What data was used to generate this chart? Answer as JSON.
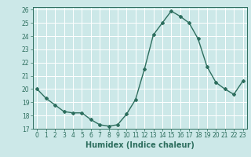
{
  "x": [
    0,
    1,
    2,
    3,
    4,
    5,
    6,
    7,
    8,
    9,
    10,
    11,
    12,
    13,
    14,
    15,
    16,
    17,
    18,
    19,
    20,
    21,
    22,
    23
  ],
  "y": [
    20.0,
    19.3,
    18.8,
    18.3,
    18.2,
    18.2,
    17.7,
    17.3,
    17.2,
    17.3,
    18.1,
    19.2,
    21.5,
    24.1,
    25.0,
    25.9,
    25.5,
    25.0,
    23.8,
    21.7,
    20.5,
    20.0,
    19.6,
    20.6
  ],
  "xlabel": "Humidex (Indice chaleur)",
  "line_color": "#2d6e5e",
  "marker": "D",
  "marker_size": 2.0,
  "line_width": 1.0,
  "bg_color": "#cce8e8",
  "grid_color": "#ffffff",
  "xlim": [
    -0.5,
    23.5
  ],
  "ylim": [
    17,
    26.2
  ],
  "yticks": [
    17,
    18,
    19,
    20,
    21,
    22,
    23,
    24,
    25,
    26
  ],
  "xticks": [
    0,
    1,
    2,
    3,
    4,
    5,
    6,
    7,
    8,
    9,
    10,
    11,
    12,
    13,
    14,
    15,
    16,
    17,
    18,
    19,
    20,
    21,
    22,
    23
  ],
  "tick_label_fontsize": 5.5,
  "xlabel_fontsize": 7.0
}
